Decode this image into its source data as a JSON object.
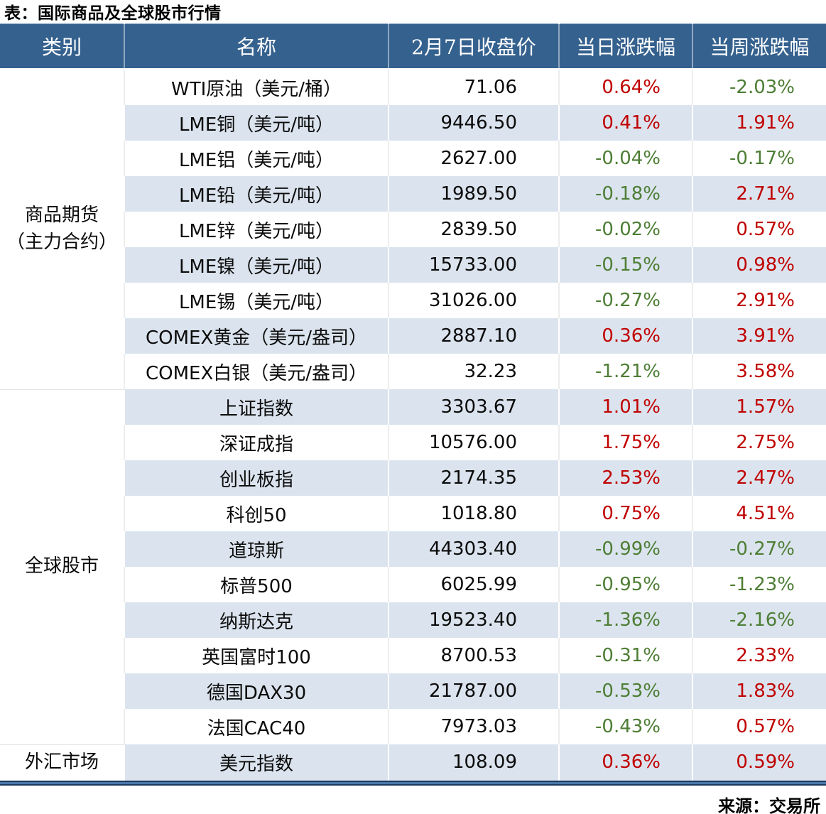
{
  "title": "表：国际商品及全球股市行情",
  "source": "来源：交易所",
  "columns": [
    "类别",
    "名称",
    "2月7日收盘价",
    "当日涨跌幅",
    "当周涨跌幅"
  ],
  "colors": {
    "header_bg": "#35618E",
    "stripe": "#DBE4EE",
    "up_red": "#C00000",
    "down_green": "#4E7E35",
    "border_dark": "#1b3a5f",
    "border_mid": "#4a77a8"
  },
  "sections": [
    {
      "category": "商品期货\n（主力合约）",
      "rows": [
        {
          "name": "WTI原油（美元/桶）",
          "close": "71.06",
          "day": "0.64%",
          "week": "-2.03%"
        },
        {
          "name": "LME铜（美元/吨）",
          "close": "9446.50",
          "day": "0.41%",
          "week": "1.91%"
        },
        {
          "name": "LME铝（美元/吨）",
          "close": "2627.00",
          "day": "-0.04%",
          "week": "-0.17%"
        },
        {
          "name": "LME铅（美元/吨）",
          "close": "1989.50",
          "day": "-0.18%",
          "week": "2.71%"
        },
        {
          "name": "LME锌（美元/吨）",
          "close": "2839.50",
          "day": "-0.02%",
          "week": "0.57%"
        },
        {
          "name": "LME镍（美元/吨）",
          "close": "15733.00",
          "day": "-0.15%",
          "week": "0.98%"
        },
        {
          "name": "LME锡（美元/吨）",
          "close": "31026.00",
          "day": "-0.27%",
          "week": "2.91%"
        },
        {
          "name": "COMEX黄金（美元/盎司）",
          "close": "2887.10",
          "day": "0.36%",
          "week": "3.91%"
        },
        {
          "name": "COMEX白银（美元/盎司）",
          "close": "32.23",
          "day": "-1.21%",
          "week": "3.58%"
        }
      ]
    },
    {
      "category": "全球股市",
      "rows": [
        {
          "name": "上证指数",
          "close": "3303.67",
          "day": "1.01%",
          "week": "1.57%"
        },
        {
          "name": "深证成指",
          "close": "10576.00",
          "day": "1.75%",
          "week": "2.75%"
        },
        {
          "name": "创业板指",
          "close": "2174.35",
          "day": "2.53%",
          "week": "2.47%"
        },
        {
          "name": "科创50",
          "close": "1018.80",
          "day": "0.75%",
          "week": "4.51%"
        },
        {
          "name": "道琼斯",
          "close": "44303.40",
          "day": "-0.99%",
          "week": "-0.27%"
        },
        {
          "name": "标普500",
          "close": "6025.99",
          "day": "-0.95%",
          "week": "-1.23%"
        },
        {
          "name": "纳斯达克",
          "close": "19523.40",
          "day": "-1.36%",
          "week": "-2.16%"
        },
        {
          "name": "英国富时100",
          "close": "8700.53",
          "day": "-0.31%",
          "week": "2.33%"
        },
        {
          "name": "德国DAX30",
          "close": "21787.00",
          "day": "-0.53%",
          "week": "1.83%"
        },
        {
          "name": "法国CAC40",
          "close": "7973.03",
          "day": "-0.43%",
          "week": "0.57%"
        }
      ]
    },
    {
      "category": "外汇市场",
      "rows": [
        {
          "name": "美元指数",
          "close": "108.09",
          "day": "0.36%",
          "week": "0.59%"
        }
      ]
    }
  ]
}
